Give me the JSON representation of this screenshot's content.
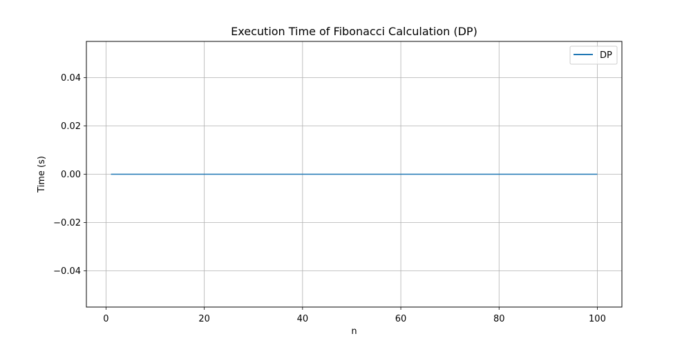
{
  "chart_data": {
    "type": "line",
    "title": "Execution Time of Fibonacci Calculation (DP)",
    "xlabel": "n",
    "ylabel": "Time (s)",
    "xlim": [
      -4,
      105
    ],
    "ylim": [
      -0.055,
      0.055
    ],
    "x_ticks": [
      0,
      20,
      40,
      60,
      80,
      100
    ],
    "x_tick_labels": [
      "0",
      "20",
      "40",
      "60",
      "80",
      "100"
    ],
    "y_ticks": [
      -0.04,
      -0.02,
      0.0,
      0.02,
      0.04
    ],
    "y_tick_labels": [
      "−0.04",
      "−0.02",
      "0.00",
      "0.02",
      "0.04"
    ],
    "grid": true,
    "legend_position": "top-right",
    "series": [
      {
        "name": "DP",
        "color": "#1f77b4",
        "x": [
          1,
          100
        ],
        "y": [
          0.0,
          0.0
        ]
      }
    ]
  }
}
